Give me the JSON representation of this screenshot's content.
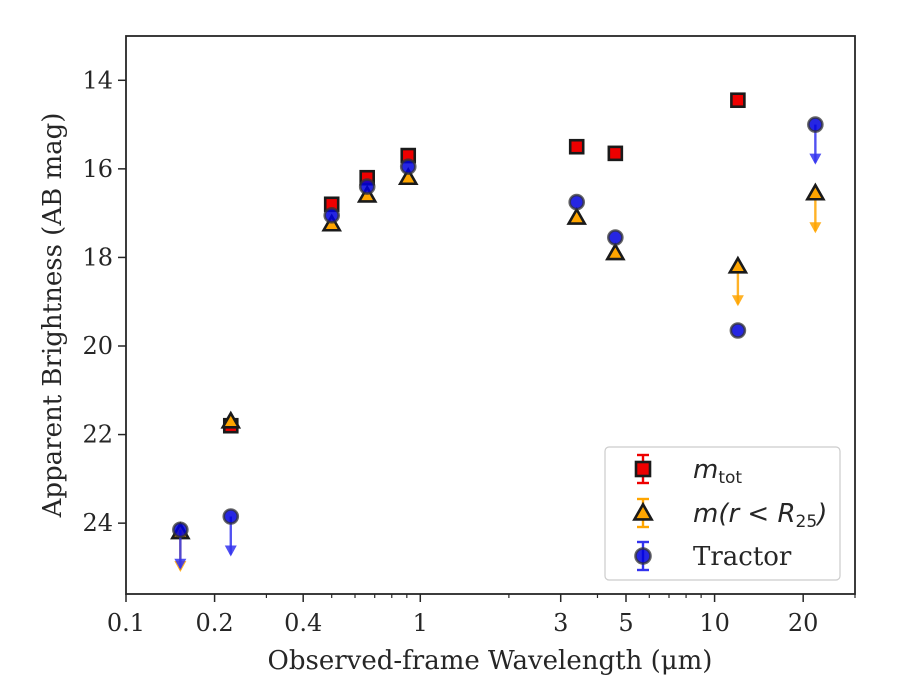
{
  "chart_data": {
    "type": "scatter",
    "xlabel": "Observed-frame Wavelength (μm)",
    "ylabel": "Apparent Brightness (AB mag)",
    "xscale": "log",
    "xlim": [
      0.1,
      30
    ],
    "ylim": [
      25.6,
      13
    ],
    "y_inverted": true,
    "grid": false,
    "legend_position": "lower-right",
    "x_ticks": [
      {
        "value": 0.1,
        "label": "0.1"
      },
      {
        "value": 0.2,
        "label": "0.2"
      },
      {
        "value": 0.4,
        "label": "0.4"
      },
      {
        "value": 1,
        "label": "1"
      },
      {
        "value": 3,
        "label": "3"
      },
      {
        "value": 5,
        "label": "5"
      },
      {
        "value": 10,
        "label": "10"
      },
      {
        "value": 20,
        "label": "20"
      }
    ],
    "y_ticks": [
      {
        "value": 14,
        "label": "14"
      },
      {
        "value": 16,
        "label": "16"
      },
      {
        "value": 18,
        "label": "18"
      },
      {
        "value": 20,
        "label": "20"
      },
      {
        "value": 22,
        "label": "22"
      },
      {
        "value": 24,
        "label": "24"
      }
    ],
    "series": [
      {
        "legend_label": "m_tot",
        "legend_main": "m",
        "legend_sub": "tot",
        "marker": "square",
        "color": "#ee0000",
        "points": [
          {
            "x": 0.227,
            "y": 21.8
          },
          {
            "x": 0.5,
            "y": 16.8
          },
          {
            "x": 0.66,
            "y": 16.2
          },
          {
            "x": 0.91,
            "y": 15.7
          },
          {
            "x": 3.4,
            "y": 15.5
          },
          {
            "x": 4.6,
            "y": 15.65
          },
          {
            "x": 12.0,
            "y": 14.45
          }
        ]
      },
      {
        "legend_label": "m(r < R_25)",
        "legend_main": "m(r < R",
        "legend_sub": "25",
        "legend_close": ")",
        "marker": "triangle",
        "color": "#ffa500",
        "points": [
          {
            "x": 0.153,
            "y": 24.2,
            "upper_limit": true
          },
          {
            "x": 0.227,
            "y": 21.7
          },
          {
            "x": 0.5,
            "y": 17.25
          },
          {
            "x": 0.66,
            "y": 16.6
          },
          {
            "x": 0.91,
            "y": 16.2
          },
          {
            "x": 3.4,
            "y": 17.1
          },
          {
            "x": 4.6,
            "y": 17.9
          },
          {
            "x": 12.0,
            "y": 18.2,
            "upper_limit": true
          },
          {
            "x": 22.0,
            "y": 16.55,
            "upper_limit": true
          }
        ]
      },
      {
        "legend_label": "Tractor",
        "marker": "circle",
        "color": "#0000dd",
        "points": [
          {
            "x": 0.153,
            "y": 24.15,
            "upper_limit": true
          },
          {
            "x": 0.227,
            "y": 23.85,
            "upper_limit": true
          },
          {
            "x": 0.5,
            "y": 17.05
          },
          {
            "x": 0.66,
            "y": 16.4
          },
          {
            "x": 0.91,
            "y": 15.95
          },
          {
            "x": 3.4,
            "y": 16.75
          },
          {
            "x": 4.6,
            "y": 17.55
          },
          {
            "x": 12.0,
            "y": 19.65
          },
          {
            "x": 22.0,
            "y": 15.0,
            "upper_limit": true
          }
        ]
      }
    ]
  }
}
